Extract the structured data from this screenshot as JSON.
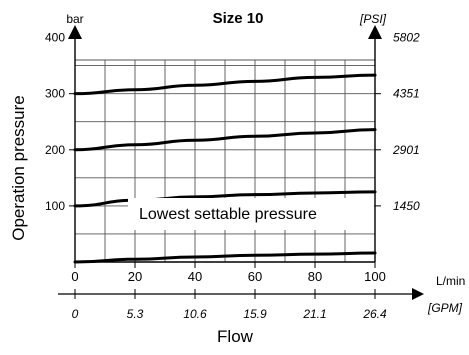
{
  "chart_data": {
    "type": "line",
    "title": "Size 10",
    "ylabel": "Operation pressure",
    "xlabel": "Flow",
    "y_unit_left": "bar",
    "y_unit_right": "[PSI]",
    "x_unit_primary": "L/min",
    "x_unit_secondary": "[GPM]",
    "xlim": [
      0,
      100
    ],
    "ylim": [
      0,
      400
    ],
    "grid": true,
    "x_ticks": [
      0,
      20,
      40,
      60,
      80,
      100
    ],
    "x_tick_labels": [
      "0",
      "20",
      "40",
      "60",
      "80",
      "100"
    ],
    "x_secondary_tick_labels": [
      "0",
      "5.3",
      "10.6",
      "15.9",
      "21.1",
      "26.4"
    ],
    "y_ticks": [
      100,
      200,
      300,
      400
    ],
    "y_tick_labels": [
      "100",
      "200",
      "300",
      "400"
    ],
    "y_right_tick_labels": [
      "1450",
      "2901",
      "4351",
      "5802"
    ],
    "annotation": "Lowest settable pressure",
    "series": [
      {
        "x": [
          0,
          20,
          40,
          60,
          80,
          100
        ],
        "values": [
          300,
          307,
          315,
          322,
          329,
          333
        ]
      },
      {
        "x": [
          0,
          20,
          40,
          60,
          80,
          100
        ],
        "values": [
          200,
          209,
          217,
          224,
          230,
          236
        ]
      },
      {
        "x": [
          0,
          20,
          40,
          60,
          80,
          100
        ],
        "values": [
          100,
          110,
          116,
          120,
          123,
          125
        ]
      },
      {
        "x": [
          0,
          20,
          40,
          60,
          80,
          100
        ],
        "values": [
          0,
          5,
          9,
          12,
          14,
          16
        ]
      }
    ]
  }
}
